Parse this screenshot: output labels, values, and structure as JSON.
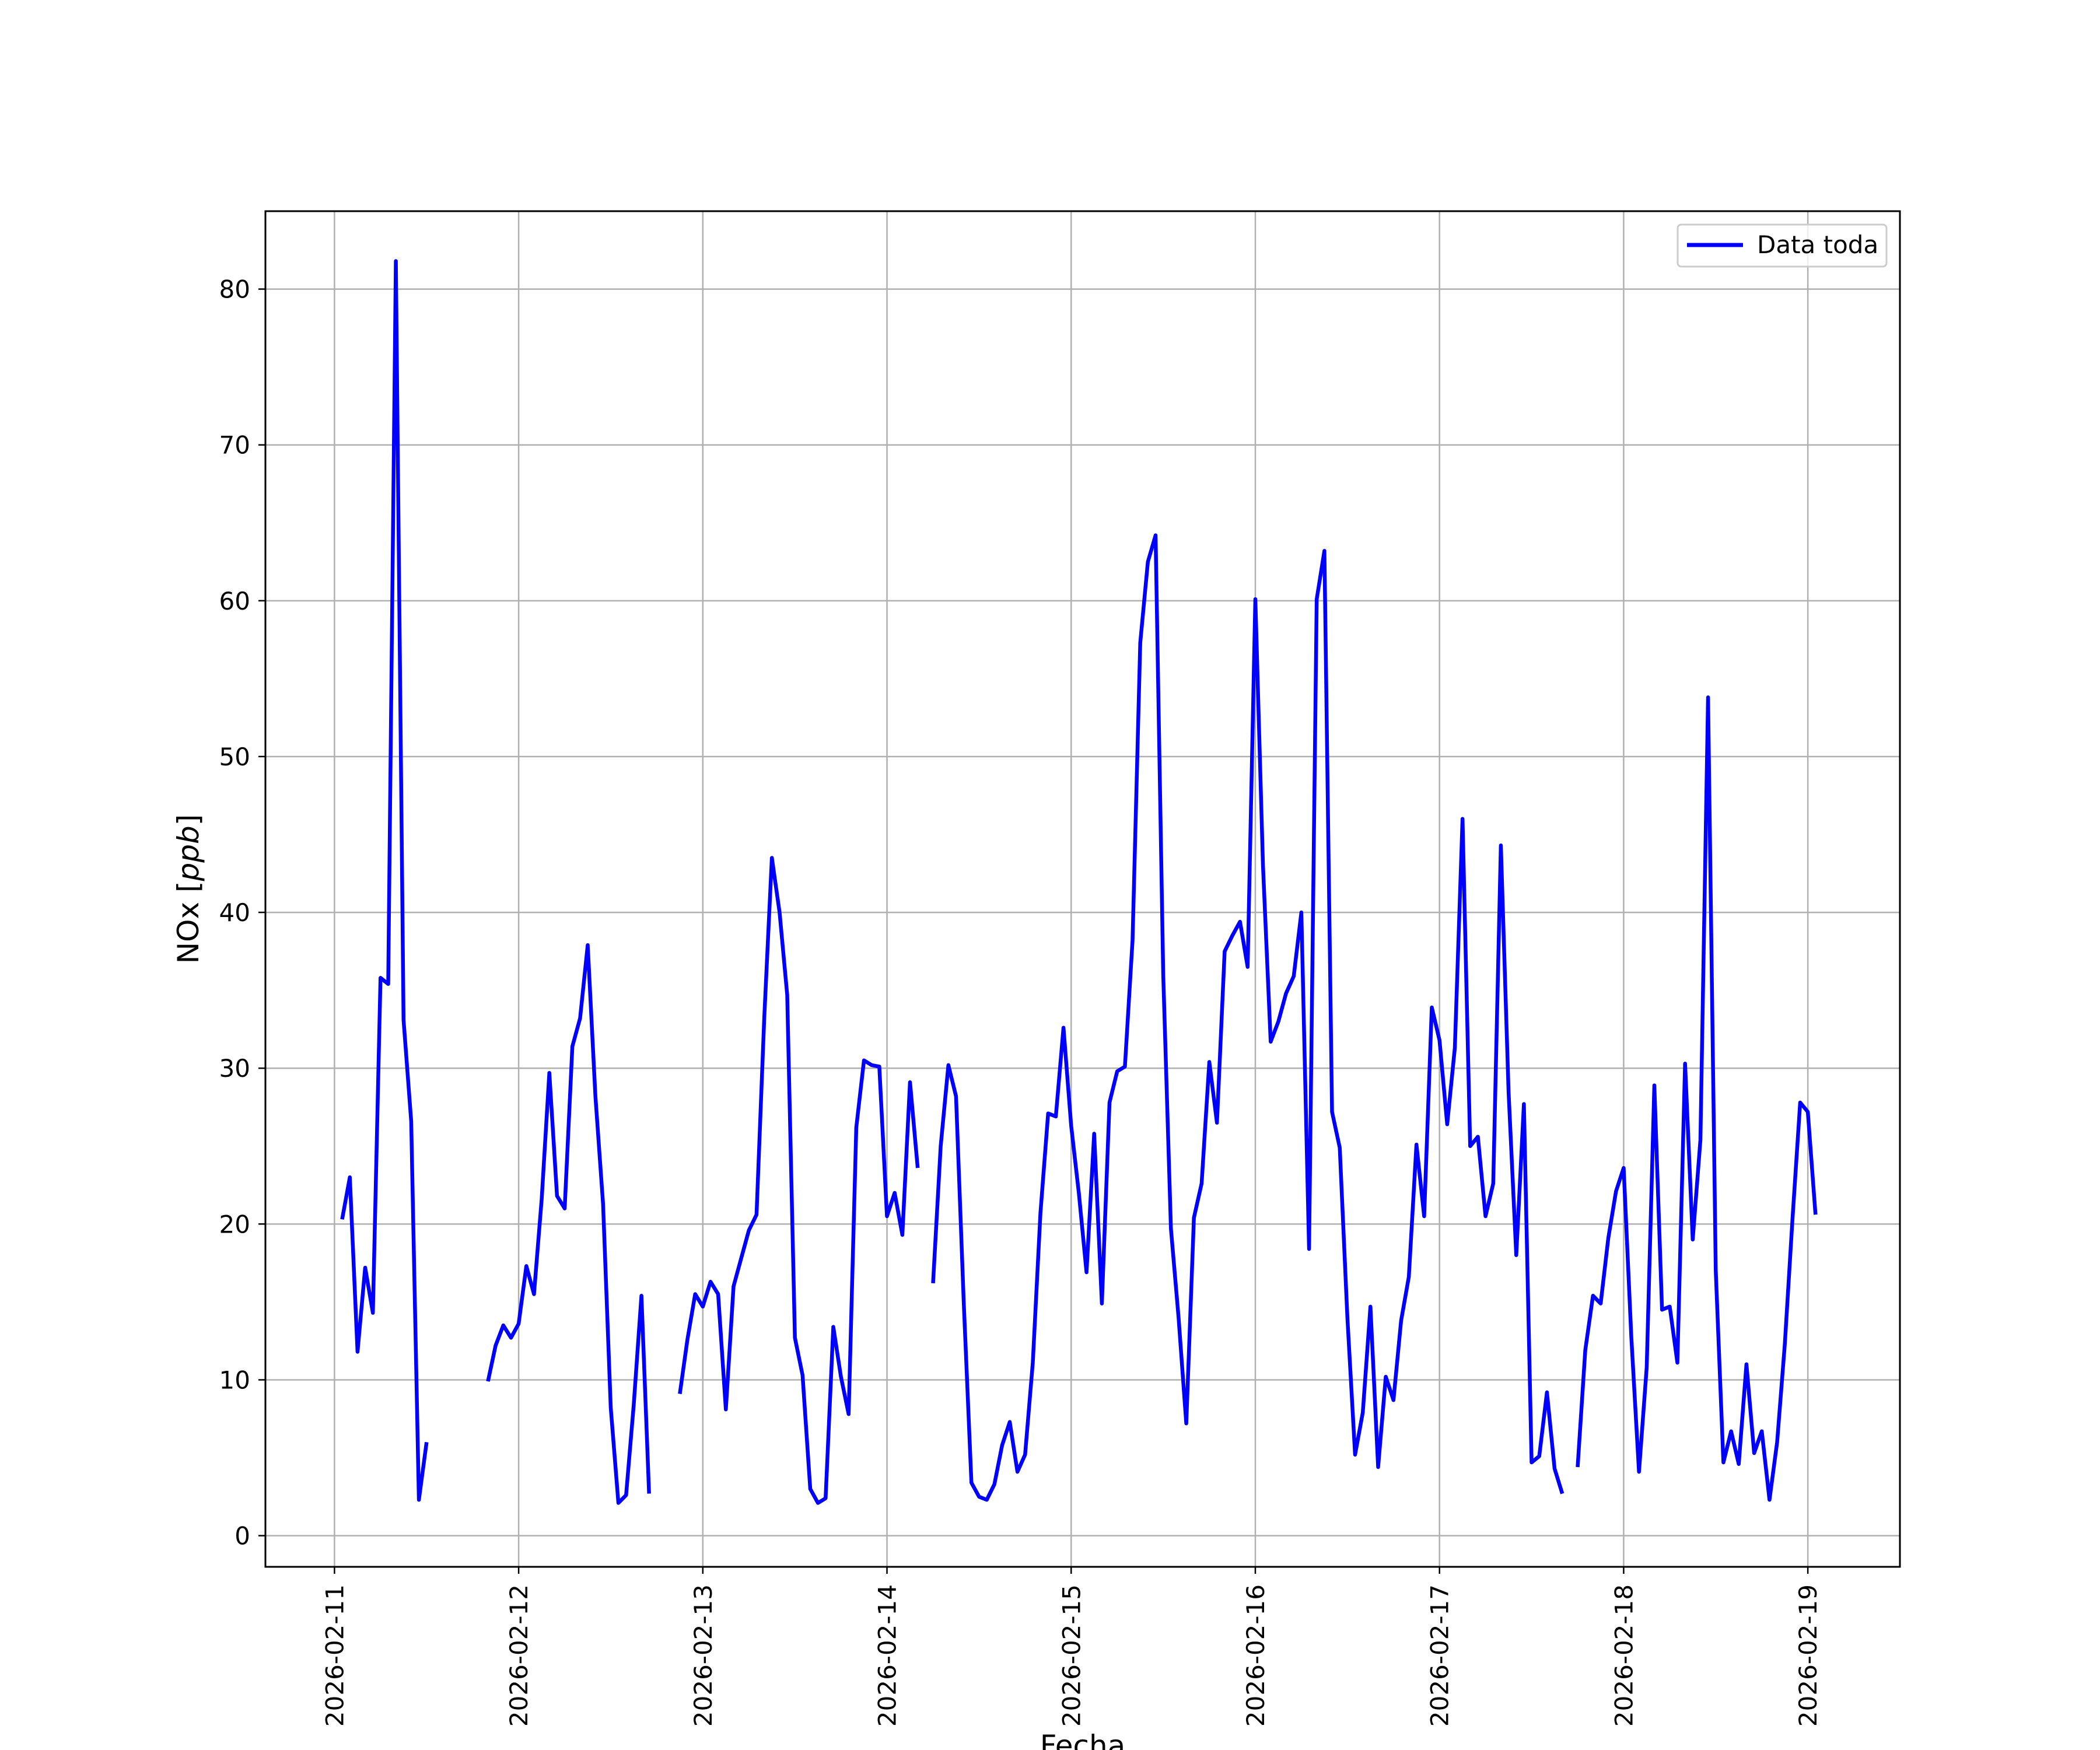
{
  "chart_data": {
    "type": "line",
    "title": "",
    "xlabel": "Fecha",
    "ylabel_text": "NOx [",
    "ylabel_unit": "ppb",
    "ylabel_close": "]",
    "ylim": [
      -2,
      85
    ],
    "xlim": [
      "2026-02-10T15:00",
      "2026-02-19T12:00"
    ],
    "x_ticks": [
      "2026-02-11",
      "2026-02-12",
      "2026-02-13",
      "2026-02-14",
      "2026-02-15",
      "2026-02-16",
      "2026-02-17",
      "2026-02-18",
      "2026-02-19"
    ],
    "y_ticks": [
      0,
      10,
      20,
      30,
      40,
      50,
      60,
      70,
      80
    ],
    "grid": true,
    "legend_position": "upper right",
    "time_step_hours": 1,
    "series": [
      {
        "name": "Data toda",
        "color": "#0000ff",
        "start": "2026-02-11T01:00",
        "values": [
          20.3,
          23.0,
          11.8,
          17.2,
          14.3,
          35.8,
          35.4,
          81.8,
          33.1,
          26.6,
          2.3,
          6.0,
          null,
          null,
          null,
          null,
          null,
          null,
          null,
          9.9,
          12.2,
          13.5,
          12.7,
          13.6,
          17.3,
          15.5,
          21.6,
          29.7,
          21.8,
          21.0,
          31.4,
          33.2,
          37.9,
          28.2,
          21.3,
          8.2,
          2.1,
          2.6,
          8.4,
          15.4,
          2.7,
          null,
          null,
          null,
          9.1,
          12.6,
          15.5,
          14.7,
          16.3,
          15.5,
          8.1,
          16.0,
          17.8,
          19.6,
          20.6,
          33.2,
          43.5,
          40.0,
          34.7,
          12.7,
          10.3,
          3.0,
          2.1,
          2.4,
          13.4,
          10.2,
          7.8,
          26.2,
          30.5,
          30.2,
          30.1,
          20.5,
          22.0,
          19.3,
          29.1,
          23.6,
          null,
          16.2,
          25.0,
          30.2,
          28.2,
          15.0,
          3.4,
          2.5,
          2.3,
          3.3,
          5.8,
          7.3,
          4.1,
          5.2,
          11.1,
          20.7,
          27.1,
          26.9,
          32.6,
          26.3,
          22.0,
          16.9,
          25.8,
          14.9,
          27.8,
          29.8,
          30.1,
          38.2,
          57.3,
          62.5,
          64.2,
          36.0,
          19.7,
          14.0,
          7.2,
          20.4,
          22.6,
          30.4,
          26.5,
          37.5,
          38.5,
          39.4,
          36.5,
          60.1,
          43.0,
          31.7,
          33.0,
          34.8,
          35.9,
          40.0,
          18.4,
          60.1,
          63.2,
          27.2,
          24.9,
          14.0,
          5.2,
          7.9,
          14.7,
          4.4,
          10.2,
          8.7,
          13.8,
          16.6,
          25.1,
          20.5,
          33.9,
          31.8,
          26.4,
          31.3,
          46.0,
          25.0,
          25.6,
          20.5,
          22.6,
          44.3,
          28.5,
          18.0,
          27.7,
          4.7,
          5.1,
          9.2,
          4.3,
          2.7,
          null,
          4.4,
          11.9,
          15.4,
          14.9,
          19.1,
          22.1,
          23.6,
          12.7,
          4.1,
          10.8,
          28.9,
          14.5,
          14.7,
          11.1,
          30.3,
          19.0,
          25.4,
          53.8,
          17.0,
          4.7,
          6.7,
          4.6,
          11.0,
          5.3,
          6.7,
          2.3,
          6.0,
          12.3,
          20.3,
          27.8,
          27.2,
          20.6
        ]
      }
    ]
  }
}
